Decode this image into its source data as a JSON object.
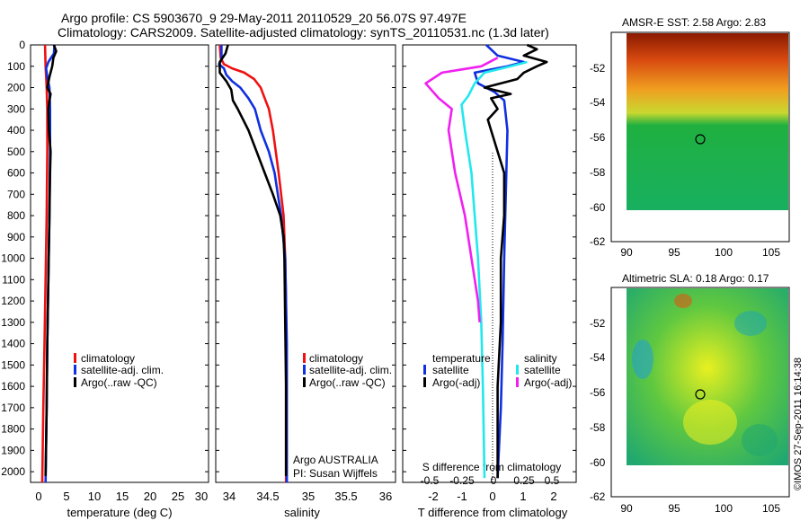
{
  "title": {
    "line1": "Argo profile: CS 5903670_9 29-May-2011 20110529_20 56.07S 97.497E",
    "line2": "Climatology: CARS2009. Satellite-adjusted climatology: synTS_20110531.nc (1.3d later)"
  },
  "colors": {
    "red": "#ee1111",
    "blue": "#1030e0",
    "black": "#000000",
    "cyan": "#22e8ee",
    "magenta": "#f020f0"
  },
  "depth_ticks": [
    "0",
    "100",
    "200",
    "300",
    "400",
    "500",
    "600",
    "700",
    "800",
    "900",
    "1000",
    "1100",
    "1200",
    "1300",
    "1400",
    "1500",
    "1600",
    "1700",
    "1800",
    "1900",
    "2000"
  ],
  "panel1": {
    "xlabel": "temperature (deg C)",
    "xticks": [
      "0",
      "5",
      "10",
      "15",
      "20",
      "25",
      "30"
    ],
    "legend": [
      "climatology",
      "satellite-adj. clim.",
      "Argo(..raw -QC)"
    ]
  },
  "panel2": {
    "xlabel": "salinity",
    "xticks": [
      "34",
      "34.5",
      "35",
      "35.5",
      "36"
    ],
    "legend": [
      "climatology",
      "satellite-adj. clim.",
      "Argo(..raw -QC)"
    ],
    "note1": "Argo AUSTRALIA",
    "note2": "PI: Susan Wijffels"
  },
  "panel3": {
    "top_label": "S difference from climatology",
    "s_ticks": [
      "-0.5",
      "-0.25",
      "0",
      "0.25",
      "0.5"
    ],
    "xticks": [
      "-2",
      "-1",
      "0",
      "1",
      "2"
    ],
    "xlabel": "T difference from climatology",
    "legend": {
      "temperature": "temperature",
      "t_sat": "satellite",
      "t_argo": "Argo(-adj)",
      "salinity": "salinity",
      "s_sat": "satellite",
      "s_argo": "Argo(-adj)"
    }
  },
  "map1": {
    "title": "AMSR-E SST: 2.58 Argo: 2.83",
    "yticks": [
      "-52",
      "-54",
      "-56",
      "-58",
      "-60",
      "-62"
    ],
    "xticks": [
      "90",
      "95",
      "100",
      "105"
    ]
  },
  "map2": {
    "title": "Altimetric SLA: 0.18 Argo: 0.17",
    "yticks": [
      "-52",
      "-54",
      "-56",
      "-58",
      "-60",
      "-62"
    ],
    "xticks": [
      "90",
      "95",
      "100",
      "105"
    ]
  },
  "credit": "©IMOS 27-Sep-2011 16:14:38",
  "chart_data": [
    {
      "type": "line",
      "xlabel": "temperature (deg C)",
      "ylabel": "",
      "xlim": [
        -1,
        31
      ],
      "ylim": [
        2050,
        0
      ],
      "series": [
        {
          "name": "climatology",
          "color": "red",
          "points": [
            [
              1.6,
              0
            ],
            [
              1.7,
              100
            ],
            [
              1.8,
              150
            ],
            [
              1.9,
              200
            ],
            [
              2.0,
              300
            ],
            [
              2.0,
              500
            ],
            [
              1.9,
              800
            ],
            [
              1.7,
              1100
            ],
            [
              1.5,
              1400
            ],
            [
              1.3,
              1700
            ],
            [
              1.1,
              2050
            ]
          ]
        },
        {
          "name": "satellite-adj. clim.",
          "color": "blue",
          "points": [
            [
              3.3,
              0
            ],
            [
              3.2,
              40
            ],
            [
              2.2,
              80
            ],
            [
              1.8,
              110
            ],
            [
              2.0,
              150
            ],
            [
              2.4,
              200
            ],
            [
              2.5,
              300
            ],
            [
              2.5,
              500
            ],
            [
              2.4,
              800
            ],
            [
              2.2,
              1100
            ],
            [
              2.0,
              1400
            ],
            [
              1.9,
              1700
            ],
            [
              1.7,
              2050
            ]
          ]
        },
        {
          "name": "Argo(..raw -QC)",
          "color": "black",
          "points": [
            [
              3.2,
              0
            ],
            [
              3.6,
              30
            ],
            [
              3.1,
              60
            ],
            [
              2.9,
              100
            ],
            [
              2.4,
              150
            ],
            [
              2.0,
              200
            ],
            [
              2.6,
              230
            ],
            [
              2.4,
              260
            ],
            [
              2.2,
              300
            ],
            [
              2.3,
              400
            ],
            [
              2.6,
              500
            ],
            [
              2.5,
              600
            ],
            [
              2.4,
              800
            ],
            [
              2.2,
              1100
            ],
            [
              2.0,
              1400
            ],
            [
              1.9,
              1700
            ],
            [
              1.7,
              2020
            ]
          ]
        }
      ]
    },
    {
      "type": "line",
      "xlabel": "salinity",
      "ylabel": "",
      "xlim": [
        33.85,
        36.05
      ],
      "ylim": [
        2050,
        0
      ],
      "series": [
        {
          "name": "climatology",
          "color": "red",
          "points": [
            [
              33.9,
              0
            ],
            [
              33.91,
              60
            ],
            [
              33.95,
              90
            ],
            [
              34.05,
              110
            ],
            [
              34.2,
              130
            ],
            [
              34.32,
              160
            ],
            [
              34.4,
              200
            ],
            [
              34.45,
              250
            ],
            [
              34.5,
              300
            ],
            [
              34.55,
              400
            ],
            [
              34.62,
              600
            ],
            [
              34.68,
              800
            ],
            [
              34.7,
              1000
            ],
            [
              34.71,
              1200
            ],
            [
              34.71,
              1500
            ],
            [
              34.71,
              2050
            ]
          ]
        },
        {
          "name": "satellite-adj. clim.",
          "color": "blue",
          "points": [
            [
              33.92,
              0
            ],
            [
              33.92,
              70
            ],
            [
              33.89,
              90
            ],
            [
              33.95,
              110
            ],
            [
              33.98,
              140
            ],
            [
              34.05,
              170
            ],
            [
              34.15,
              200
            ],
            [
              34.25,
              250
            ],
            [
              34.33,
              300
            ],
            [
              34.4,
              400
            ],
            [
              34.5,
              500
            ],
            [
              34.57,
              600
            ],
            [
              34.65,
              800
            ],
            [
              34.7,
              1000
            ],
            [
              34.71,
              1200
            ],
            [
              34.72,
              1400
            ],
            [
              34.72,
              2050
            ]
          ]
        },
        {
          "name": "Argo(..raw -QC)",
          "color": "black",
          "points": [
            [
              34.0,
              0
            ],
            [
              33.97,
              40
            ],
            [
              33.9,
              80
            ],
            [
              33.9,
              130
            ],
            [
              33.98,
              170
            ],
            [
              34.04,
              210
            ],
            [
              34.06,
              260
            ],
            [
              34.12,
              300
            ],
            [
              34.25,
              400
            ],
            [
              34.35,
              500
            ],
            [
              34.45,
              600
            ],
            [
              34.55,
              700
            ],
            [
              34.64,
              800
            ],
            [
              34.68,
              900
            ],
            [
              34.69,
              1000
            ],
            [
              34.7,
              1300
            ],
            [
              34.71,
              1600
            ],
            [
              34.71,
              1900
            ],
            [
              34.71,
              2020
            ]
          ]
        }
      ]
    },
    {
      "type": "line",
      "xlabel": "T difference from climatology",
      "ylabel": "",
      "xlim": [
        -2.5,
        2.8
      ],
      "ylim": [
        2050,
        0
      ],
      "series": [
        {
          "name": "temperature satellite",
          "color": "blue",
          "points": [
            [
              0.05,
              0
            ],
            [
              0.4,
              50
            ],
            [
              1.2,
              80
            ],
            [
              0.7,
              100
            ],
            [
              -0.3,
              130
            ],
            [
              -0.2,
              180
            ],
            [
              0.3,
              220
            ],
            [
              0.6,
              260
            ],
            [
              0.7,
              400
            ],
            [
              0.65,
              700
            ],
            [
              0.6,
              1000
            ],
            [
              0.55,
              1400
            ],
            [
              0.5,
              1700
            ],
            [
              0.4,
              2030
            ]
          ]
        },
        {
          "name": "temperature Argo(-adj)",
          "color": "black",
          "points": [
            [
              1.3,
              0
            ],
            [
              1.6,
              20
            ],
            [
              1.2,
              50
            ],
            [
              1.9,
              80
            ],
            [
              1.6,
              100
            ],
            [
              1.2,
              130
            ],
            [
              1.0,
              160
            ],
            [
              0.0,
              200
            ],
            [
              0.8,
              230
            ],
            [
              0.2,
              250
            ],
            [
              0.4,
              300
            ],
            [
              0.1,
              350
            ],
            [
              0.2,
              400
            ],
            [
              0.6,
              600
            ],
            [
              0.6,
              800
            ],
            [
              0.5,
              1000
            ],
            [
              0.5,
              1300
            ],
            [
              0.4,
              1600
            ],
            [
              0.4,
              2030
            ]
          ]
        },
        {
          "name": "salinity satellite",
          "color": "cyan",
          "points": [
            [
              1.3,
              80
            ],
            [
              0.8,
              100
            ],
            [
              0.0,
              130
            ],
            [
              -0.3,
              180
            ],
            [
              -0.5,
              240
            ],
            [
              -0.7,
              280
            ],
            [
              -0.6,
              400
            ],
            [
              -0.4,
              600
            ],
            [
              -0.3,
              800
            ],
            [
              -0.2,
              1000
            ],
            [
              -0.1,
              1300
            ],
            [
              -0.05,
              1600
            ],
            [
              0.0,
              2030
            ]
          ]
        },
        {
          "name": "salinity Argo(-adj)",
          "color": "magenta",
          "points": [
            [
              0.4,
              60
            ],
            [
              -0.1,
              100
            ],
            [
              -1.3,
              130
            ],
            [
              -1.8,
              180
            ],
            [
              -1.4,
              250
            ],
            [
              -1.0,
              300
            ],
            [
              -1.1,
              400
            ],
            [
              -0.9,
              600
            ],
            [
              -0.6,
              800
            ],
            [
              -0.4,
              1000
            ],
            [
              -0.2,
              1200
            ],
            [
              -0.15,
              1300
            ]
          ]
        }
      ]
    }
  ]
}
